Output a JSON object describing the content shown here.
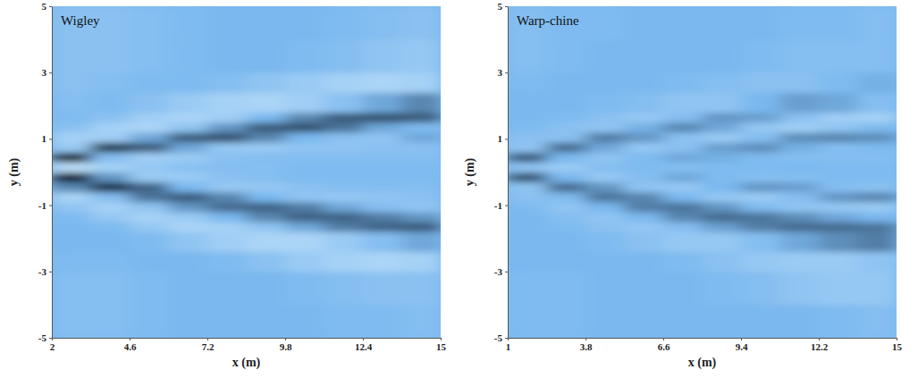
{
  "chart_data": [
    {
      "type": "heatmap",
      "title": "Wigley",
      "x_label": "x (m)",
      "y_label": "y (m)",
      "xlim": [
        2,
        15
      ],
      "ylim": [
        -5,
        5
      ],
      "xticks": [
        2,
        4.6,
        7.2,
        9.8,
        12.4,
        15
      ],
      "yticks": [
        -5,
        -3,
        -1,
        1,
        3,
        5
      ],
      "zlim": [
        -1,
        1
      ],
      "x_edges": [
        2,
        3.3,
        4.6,
        5.9,
        7.2,
        8.5,
        9.8,
        11.1,
        12.4,
        13.7,
        15
      ],
      "y_edges": [
        -5,
        -4,
        -3,
        -2.4,
        -1.8,
        -1.5,
        -1.2,
        -0.9,
        -0.6,
        -0.3,
        0,
        0.3,
        0.6,
        0.9,
        1.2,
        1.5,
        1.8,
        2.4,
        3,
        4,
        5
      ],
      "z": [
        [
          0.1,
          0.1,
          0.05,
          0,
          0,
          0,
          0,
          0.05,
          0.05,
          0.1
        ],
        [
          0.1,
          0.1,
          0.05,
          0,
          0,
          0,
          0.05,
          0.1,
          0.15,
          0.15
        ],
        [
          0.05,
          0.05,
          0,
          0,
          0.05,
          0.15,
          0.3,
          0.4,
          0.45,
          0.4
        ],
        [
          0,
          0,
          0.05,
          0.2,
          0.35,
          0.45,
          0.45,
          0.3,
          0.1,
          -0.1
        ],
        [
          0,
          0.05,
          0.25,
          0.45,
          0.4,
          0.2,
          -0.1,
          -0.35,
          -0.5,
          -0.55
        ],
        [
          0.05,
          0.25,
          0.4,
          0.3,
          0,
          -0.3,
          -0.5,
          -0.5,
          -0.35,
          -0.2
        ],
        [
          0.2,
          0.4,
          0.2,
          -0.2,
          -0.45,
          -0.5,
          -0.35,
          -0.1,
          0.1,
          0.2
        ],
        [
          0.45,
          0.1,
          -0.4,
          -0.55,
          -0.3,
          0,
          0.2,
          0.25,
          0.2,
          0.15
        ],
        [
          -0.3,
          -0.8,
          -0.5,
          0,
          0.25,
          0.25,
          0.15,
          0.1,
          0.1,
          0.1
        ],
        [
          -0.95,
          -0.2,
          0.3,
          0.3,
          0.15,
          0.1,
          0.05,
          0.05,
          0.05,
          0.05
        ],
        [
          0.6,
          0.4,
          0.25,
          0.15,
          0.1,
          0.1,
          0.05,
          0.05,
          0.05,
          0.05
        ],
        [
          -0.9,
          0.1,
          0.35,
          0.3,
          0.15,
          0.1,
          0.1,
          0.1,
          0.1,
          0.1
        ],
        [
          0.3,
          -0.75,
          -0.55,
          -0.1,
          0.25,
          0.3,
          0.2,
          0.2,
          0.15,
          0.15
        ],
        [
          0.4,
          0.35,
          -0.1,
          -0.55,
          -0.6,
          -0.3,
          0,
          0.15,
          0.2,
          -0.1
        ],
        [
          0.15,
          0.4,
          0.45,
          0.2,
          -0.2,
          -0.55,
          -0.6,
          -0.4,
          -0.1,
          0.05
        ],
        [
          0.05,
          0.15,
          0.35,
          0.45,
          0.35,
          0,
          -0.3,
          -0.55,
          -0.6,
          -0.55
        ],
        [
          0.1,
          0.05,
          0.15,
          0.3,
          0.4,
          0.45,
          0.35,
          0.15,
          -0.1,
          -0.3
        ],
        [
          0.15,
          0.1,
          0.05,
          0.05,
          0.1,
          0.2,
          0.3,
          0.4,
          0.45,
          0.4
        ],
        [
          0.15,
          0.15,
          0.1,
          0.05,
          0,
          0,
          0.05,
          0.1,
          0.2,
          0.25
        ],
        [
          0.15,
          0.15,
          0.1,
          0.05,
          0,
          0,
          0,
          0.05,
          0.1,
          0.15
        ]
      ]
    },
    {
      "type": "heatmap",
      "title": "Warp-chine",
      "x_label": "x (m)",
      "y_label": "y (m)",
      "xlim": [
        1,
        15
      ],
      "ylim": [
        -5,
        5
      ],
      "xticks": [
        1,
        3.8,
        6.6,
        9.4,
        12.2,
        15
      ],
      "yticks": [
        -5,
        -3,
        -1,
        1,
        3,
        5
      ],
      "zlim": [
        -1,
        1
      ],
      "x_edges": [
        1,
        2.4,
        3.8,
        5.2,
        6.6,
        8,
        9.4,
        10.8,
        12.2,
        13.6,
        15
      ],
      "y_edges": [
        -5,
        -4,
        -3,
        -2.4,
        -1.8,
        -1.5,
        -1.2,
        -0.9,
        -0.6,
        -0.3,
        0,
        0.3,
        0.6,
        0.9,
        1.2,
        1.5,
        1.8,
        2.4,
        3,
        4,
        5
      ],
      "z": [
        [
          0.05,
          0.05,
          0,
          0,
          0,
          0,
          0,
          0,
          0.05,
          0.1
        ],
        [
          0.05,
          0.05,
          0,
          0,
          0,
          0.05,
          0.1,
          0.2,
          0.25,
          0.25
        ],
        [
          0,
          0,
          0,
          0,
          0.05,
          0.15,
          0.25,
          0.3,
          0.3,
          0.2
        ],
        [
          0,
          0,
          0.05,
          0.15,
          0.25,
          0.25,
          0.1,
          -0.1,
          -0.25,
          -0.35
        ],
        [
          0,
          0.05,
          0.15,
          0.25,
          0.1,
          -0.15,
          -0.35,
          -0.45,
          -0.45,
          -0.4
        ],
        [
          0,
          0.1,
          0.2,
          0,
          -0.3,
          -0.45,
          -0.4,
          -0.25,
          -0.1,
          0
        ],
        [
          0.05,
          0.2,
          0,
          -0.35,
          -0.4,
          -0.2,
          0.05,
          0.2,
          0.25,
          0.3
        ],
        [
          0.15,
          0.05,
          -0.4,
          -0.3,
          0,
          0.25,
          0.3,
          0.1,
          -0.2,
          -0.3
        ],
        [
          0.2,
          -0.45,
          -0.2,
          0.2,
          0.25,
          0,
          -0.2,
          -0.15,
          0.1,
          0.15
        ],
        [
          -0.6,
          0,
          0.25,
          0.1,
          -0.1,
          0.05,
          0.1,
          0.1,
          0.05,
          0.05
        ],
        [
          0.2,
          0.3,
          0.1,
          0.05,
          0.1,
          0.05,
          0.05,
          0,
          0.05,
          0.05
        ],
        [
          -0.55,
          0,
          0.2,
          0.05,
          -0.1,
          -0.05,
          0.05,
          0.1,
          0.1,
          0.1
        ],
        [
          0.2,
          -0.45,
          -0.1,
          0.25,
          0.15,
          -0.15,
          -0.25,
          -0.05,
          0.1,
          0.05
        ],
        [
          0.15,
          0.15,
          -0.35,
          -0.2,
          0.15,
          0.3,
          0.1,
          -0.25,
          -0.3,
          -0.25
        ],
        [
          0.05,
          0.15,
          0.2,
          -0.05,
          -0.3,
          -0.1,
          0.25,
          0.35,
          0.2,
          0.05
        ],
        [
          0,
          0.05,
          0.15,
          0.25,
          0.1,
          -0.2,
          -0.15,
          0.15,
          0.35,
          0.4
        ],
        [
          0,
          0,
          0.05,
          0.1,
          0.2,
          0.2,
          0,
          -0.15,
          -0.1,
          0.1
        ],
        [
          0.05,
          0,
          0,
          0,
          0.05,
          0.1,
          0.15,
          0.15,
          0.05,
          -0.05
        ],
        [
          0.1,
          0.05,
          0,
          0,
          0,
          0,
          0.05,
          0.1,
          0.1,
          0.1
        ],
        [
          0.1,
          0.05,
          0.05,
          0,
          0,
          0,
          0,
          0.05,
          0.05,
          0.1
        ]
      ]
    }
  ]
}
